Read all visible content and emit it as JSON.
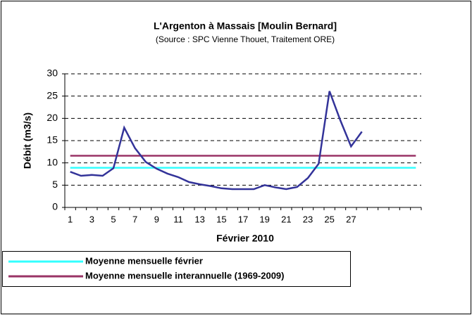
{
  "chart_data": {
    "type": "line",
    "title": "L'Argenton à Massais [Moulin Bernard]",
    "subtitle": "(Source : SPC Vienne Thouet, Traitement ORE)",
    "x_label": "Février 2010",
    "y_label": "Débit (m3/s)",
    "categories": [
      "1",
      null,
      "3",
      null,
      "5",
      null,
      "7",
      null,
      "9",
      null,
      "11",
      null,
      "13",
      null,
      "15",
      null,
      "17",
      null,
      "19",
      null,
      "21",
      null,
      "23",
      null,
      "25",
      null,
      "27",
      null,
      null,
      null,
      null,
      null,
      null
    ],
    "series": [
      {
        "color": "#333399",
        "values": [
          8,
          7.1,
          7.3,
          7.1,
          8.8,
          17.9,
          13.3,
          10.2,
          8.7,
          7.6,
          6.8,
          5.7,
          5.2,
          4.8,
          4.3,
          4.1,
          4.1,
          4.1,
          5,
          4.5,
          4.1,
          4.6,
          6.6,
          9.8,
          26.1,
          19.6,
          13.7,
          17,
          null,
          null,
          null,
          null,
          null
        ]
      },
      {
        "name": "Moyenne mensuelle février",
        "color": "#33ffff",
        "values": [
          8.9,
          8.9,
          8.9,
          8.9,
          8.9,
          8.9,
          8.9,
          8.9,
          8.9,
          8.9,
          8.9,
          8.9,
          8.9,
          8.9,
          8.9,
          8.9,
          8.9,
          8.9,
          8.9,
          8.9,
          8.9,
          8.9,
          8.9,
          8.9,
          8.9,
          8.9,
          8.9,
          8.9,
          8.9,
          8.9,
          8.9,
          8.9,
          8.9
        ]
      },
      {
        "name": "Moyenne mensuelle interannuelle (1969-2009)",
        "color": "#993366",
        "values": [
          11.6,
          11.6,
          11.6,
          11.6,
          11.6,
          11.6,
          11.6,
          11.6,
          11.6,
          11.6,
          11.6,
          11.6,
          11.6,
          11.6,
          11.6,
          11.6,
          11.6,
          11.6,
          11.6,
          11.6,
          11.6,
          11.6,
          11.6,
          11.6,
          11.6,
          11.6,
          11.6,
          11.6,
          11.6,
          11.6,
          11.6,
          11.6,
          11.6
        ]
      }
    ],
    "ylim": [
      0,
      30
    ],
    "yticks": [
      0,
      5,
      10,
      15,
      20,
      25,
      30
    ],
    "grid": true,
    "legend": "bottom-left"
  }
}
